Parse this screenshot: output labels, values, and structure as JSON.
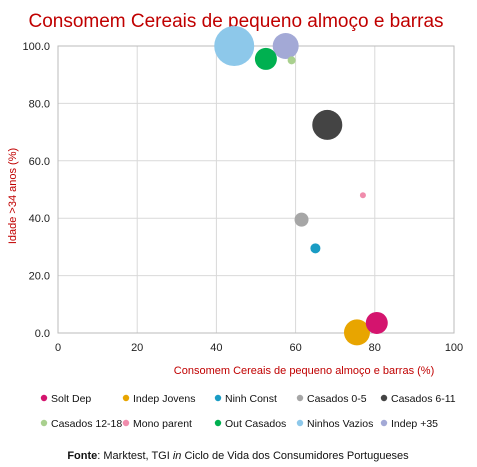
{
  "chart_data": {
    "type": "scatter",
    "title": "Consomem Cereais de pequeno almoço e barras",
    "xlabel": "Consomem Cereais de pequeno almoço e barras (%)",
    "ylabel": "Idade >34 anos (%)",
    "xlim": [
      0,
      100
    ],
    "ylim": [
      0,
      100
    ],
    "xticks": [
      "0",
      "20",
      "40",
      "60",
      "80",
      "100"
    ],
    "yticks": [
      "0.0",
      "20.0",
      "40.0",
      "60.0",
      "80.0",
      "100.0"
    ],
    "grid": true,
    "legend_position": "bottom",
    "series": [
      {
        "name": "Solt Dep",
        "color": "#d4146e",
        "x": 80.5,
        "y": 3.5,
        "size": 11
      },
      {
        "name": "Indep Jovens",
        "color": "#e8a500",
        "x": 75.5,
        "y": 0.2,
        "size": 13
      },
      {
        "name": "Ninh Const",
        "color": "#1a9cc4",
        "x": 65,
        "y": 29.5,
        "size": 5
      },
      {
        "name": "Casados 0-5",
        "color": "#a6a6a6",
        "x": 61.5,
        "y": 39.5,
        "size": 7
      },
      {
        "name": "Casados 6-11",
        "color": "#444444",
        "x": 68,
        "y": 72.5,
        "size": 15
      },
      {
        "name": "Casados 12-18",
        "color": "#a9d08e",
        "x": 59,
        "y": 95,
        "size": 4
      },
      {
        "name": "Mono parent",
        "color": "#f08cac",
        "x": 77,
        "y": 48,
        "size": 3
      },
      {
        "name": "Out Casados",
        "color": "#00b050",
        "x": 52.5,
        "y": 95.5,
        "size": 11
      },
      {
        "name": "Ninhos Vazios",
        "color": "#8dc8ea",
        "x": 44.5,
        "y": 100,
        "size": 20
      },
      {
        "name": "Indep +35",
        "color": "#a3a9d6",
        "x": 57.5,
        "y": 100,
        "size": 13
      }
    ]
  },
  "source": {
    "label": "Fonte",
    "prefix": ": Marktest, TGI ",
    "italic": "in",
    "suffix": " Ciclo de Vida dos Consumidores Portugueses"
  }
}
